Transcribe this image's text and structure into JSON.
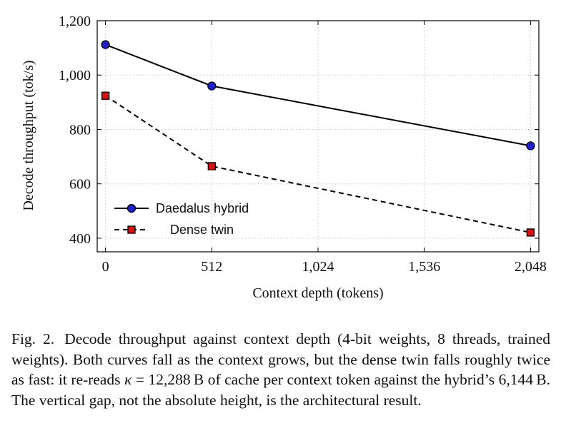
{
  "chart_data": {
    "type": "line",
    "xlabel": "Context depth (tokens)",
    "ylabel": "Decode throughput (tok/s)",
    "xlim": [
      -40,
      2088
    ],
    "ylim": [
      350,
      1200
    ],
    "x_ticks": [
      0,
      512,
      1024,
      1536,
      2048
    ],
    "x_tick_labels": [
      "0",
      "512",
      "1,024",
      "1,536",
      "2,048"
    ],
    "y_ticks": [
      400,
      600,
      800,
      1000,
      1200
    ],
    "y_tick_labels": [
      "400",
      "600",
      "800",
      "1,000",
      "1,200"
    ],
    "grid": true,
    "legend_position": "lower-left",
    "series": [
      {
        "name": "Daedalus hybrid",
        "line_style": "solid",
        "marker": "circle",
        "color": "#000000",
        "marker_fill": "#1f22cc",
        "x": [
          0,
          512,
          2048
        ],
        "y": [
          1112,
          960,
          740
        ]
      },
      {
        "name": "Dense twin",
        "line_style": "dashed",
        "marker": "square",
        "color": "#000000",
        "marker_fill": "#d41414",
        "x": [
          0,
          512,
          2048
        ],
        "y": [
          924,
          665,
          421
        ]
      }
    ]
  },
  "caption": {
    "label": "Fig. 2.",
    "part1": "Decode throughput against context depth (4-bit weights, 8 threads, trained weights). Both curves fall as the context grows, but the dense twin falls roughly twice as fast: it re-reads",
    "kappa_symbol": "κ",
    "kappa_value": "= 12,288",
    "unit_bytes": "B",
    "part2": "of cache per context token against the hybrid’s",
    "hybrid_value": "6,144",
    "part3": "The vertical gap, not the absolute height, is the architectural result."
  }
}
